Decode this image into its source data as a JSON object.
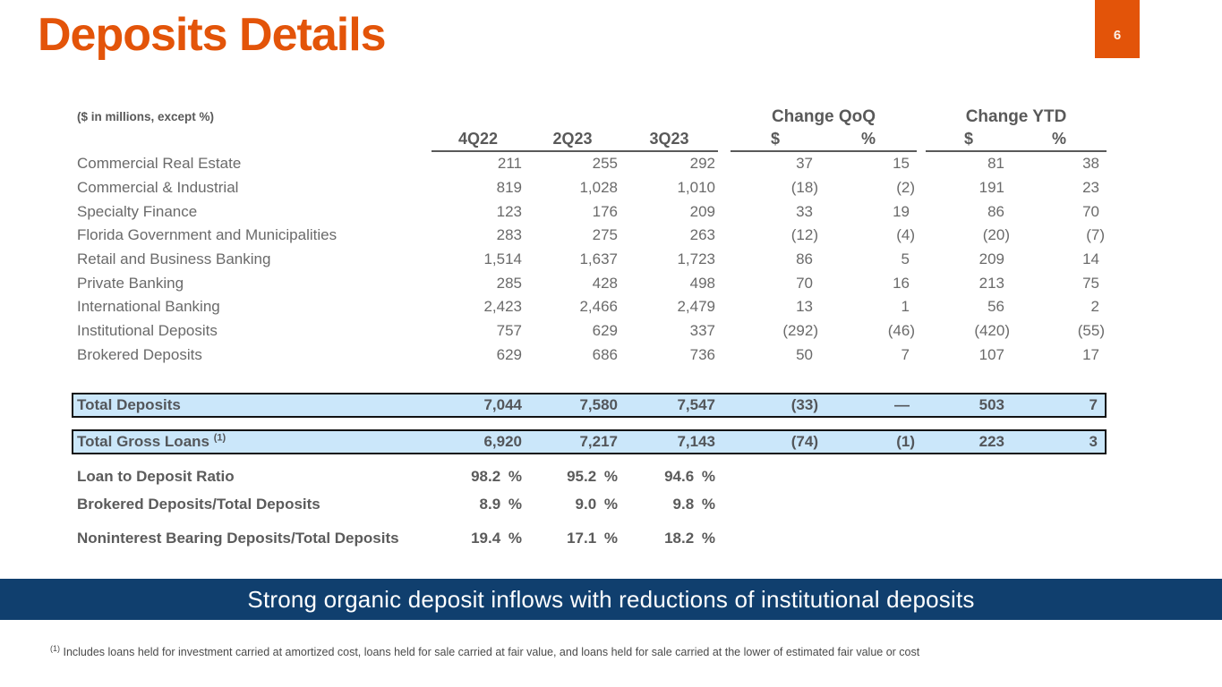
{
  "page": {
    "title": "Deposits Details",
    "page_number": "6",
    "banner_text": "Strong organic deposit inflows with reductions of institutional deposits",
    "footnote_marker": "(1)",
    "footnote_text": " Includes loans held for investment carried at amortized cost, loans held for sale carried at fair value, and loans held for sale carried at the lower of estimated fair value or cost"
  },
  "colors": {
    "accent_orange": "#E35409",
    "banner_blue": "#103F6E",
    "highlight_row_blue": "#CBE7FA",
    "table_text_gray": "#6A6A6A",
    "header_text_gray": "#595959"
  },
  "table": {
    "units_note": "($ in millions, except %)",
    "group_headers": [
      "Change QoQ",
      "Change YTD"
    ],
    "period_headers": [
      "4Q22",
      "2Q23",
      "3Q23"
    ],
    "change_subheaders": [
      "$",
      "%",
      "$",
      "%"
    ],
    "rows": [
      {
        "label": "Commercial Real Estate",
        "values": [
          "211",
          "255",
          "292",
          "37",
          "15",
          "81",
          "38"
        ]
      },
      {
        "label": "Commercial & Industrial",
        "values": [
          "819",
          "1,028",
          "1,010",
          "(18)",
          "(2)",
          "191",
          "23"
        ]
      },
      {
        "label": "Specialty Finance",
        "values": [
          "123",
          "176",
          "209",
          "33",
          "19",
          "86",
          "70"
        ]
      },
      {
        "label": "Florida Government and Municipalities",
        "values": [
          "283",
          "275",
          "263",
          "(12)",
          "(4)",
          "(20)",
          "(7)"
        ]
      },
      {
        "label": "Retail and Business Banking",
        "values": [
          "1,514",
          "1,637",
          "1,723",
          "86",
          "5",
          "209",
          "14"
        ]
      },
      {
        "label": "Private Banking",
        "values": [
          "285",
          "428",
          "498",
          "70",
          "16",
          "213",
          "75"
        ]
      },
      {
        "label": "International Banking",
        "values": [
          "2,423",
          "2,466",
          "2,479",
          "13",
          "1",
          "56",
          "2"
        ]
      },
      {
        "label": "Institutional Deposits",
        "values": [
          "757",
          "629",
          "337",
          "(292)",
          "(46)",
          "(420)",
          "(55)"
        ]
      },
      {
        "label": "Brokered Deposits",
        "values": [
          "629",
          "686",
          "736",
          "50",
          "7",
          "107",
          "17"
        ]
      }
    ],
    "total_rows": [
      {
        "label": "Total Deposits",
        "footnote": "",
        "values": [
          "7,044",
          "7,580",
          "7,547",
          "(33)",
          "—",
          "503",
          "7"
        ]
      },
      {
        "label": "Total Gross Loans",
        "footnote": "(1)",
        "values": [
          "6,920",
          "7,217",
          "7,143",
          "(74)",
          "(1)",
          "223",
          "3"
        ]
      }
    ],
    "ratio_rows": [
      {
        "label": "Loan to Deposit Ratio",
        "values": [
          "98.2 %",
          "95.2 %",
          "94.6 %"
        ]
      },
      {
        "label": "Brokered Deposits/Total Deposits",
        "values": [
          "8.9 %",
          "9.0 %",
          "9.8 %"
        ]
      },
      {
        "label": "Noninterest Bearing Deposits/Total Deposits",
        "values": [
          "19.4 %",
          "17.1 %",
          "18.2 %"
        ]
      }
    ]
  }
}
